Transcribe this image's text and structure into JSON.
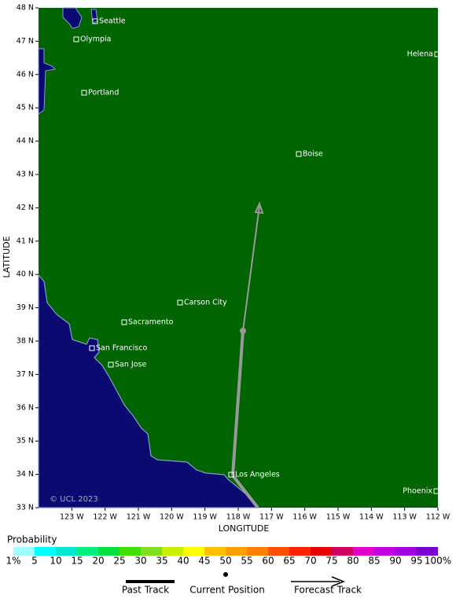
{
  "map": {
    "xlim": [
      124,
      112
    ],
    "ylim": [
      33,
      48
    ],
    "xticks": [
      {
        "value": 123,
        "label": "123 W"
      },
      {
        "value": 122,
        "label": "122 W"
      },
      {
        "value": 121,
        "label": "121 W"
      },
      {
        "value": 120,
        "label": "120 W"
      },
      {
        "value": 119,
        "label": "119 W"
      },
      {
        "value": 118,
        "label": "118 W"
      },
      {
        "value": 117,
        "label": "117 W"
      },
      {
        "value": 116,
        "label": "116 W"
      },
      {
        "value": 115,
        "label": "115 W"
      },
      {
        "value": 114,
        "label": "114 W"
      },
      {
        "value": 113,
        "label": "113 W"
      },
      {
        "value": 112,
        "label": "112 W"
      }
    ],
    "yticks": [
      {
        "value": 48,
        "label": "48 N"
      },
      {
        "value": 47,
        "label": "47 N"
      },
      {
        "value": 46,
        "label": "46 N"
      },
      {
        "value": 45,
        "label": "45 N"
      },
      {
        "value": 44,
        "label": "44 N"
      },
      {
        "value": 43,
        "label": "43 N"
      },
      {
        "value": 42,
        "label": "42 N"
      },
      {
        "value": 41,
        "label": "41 N"
      },
      {
        "value": 40,
        "label": "40 N"
      },
      {
        "value": 39,
        "label": "39 N"
      },
      {
        "value": 38,
        "label": "38 N"
      },
      {
        "value": 37,
        "label": "37 N"
      },
      {
        "value": 36,
        "label": "36 N"
      },
      {
        "value": 35,
        "label": "35 N"
      },
      {
        "value": 34,
        "label": "34 N"
      },
      {
        "value": 33,
        "label": "33 N"
      }
    ],
    "xlabel": "LONGITUDE",
    "ylabel": "LATITUDE",
    "cities": [
      "Seattle",
      "Olympia",
      "Helena",
      "Portland",
      "Boise",
      "Carson City",
      "Sacramento",
      "San Francisco",
      "San Jose",
      "Los Angeles",
      "Phoenix"
    ],
    "copyright": "© UCL 2023"
  },
  "legend": {
    "title": "Probability",
    "labels": [
      "1%",
      "5",
      "10",
      "15",
      "20",
      "25",
      "30",
      "35",
      "40",
      "45",
      "50",
      "55",
      "60",
      "65",
      "70",
      "75",
      "80",
      "85",
      "90",
      "95",
      "100%"
    ],
    "colors": [
      "#a0ffff",
      "#00ffff",
      "#00e8d0",
      "#00f080",
      "#00e040",
      "#40e000",
      "#80e020",
      "#c8f000",
      "#ffff00",
      "#ffc000",
      "#ffa000",
      "#ff8000",
      "#ff5000",
      "#ff2000",
      "#e80000",
      "#d00060",
      "#e000c8",
      "#c000e0",
      "#a000e0",
      "#7800d0"
    ],
    "track": [
      "Past Track",
      "Current Position",
      "Forecast Track"
    ]
  }
}
